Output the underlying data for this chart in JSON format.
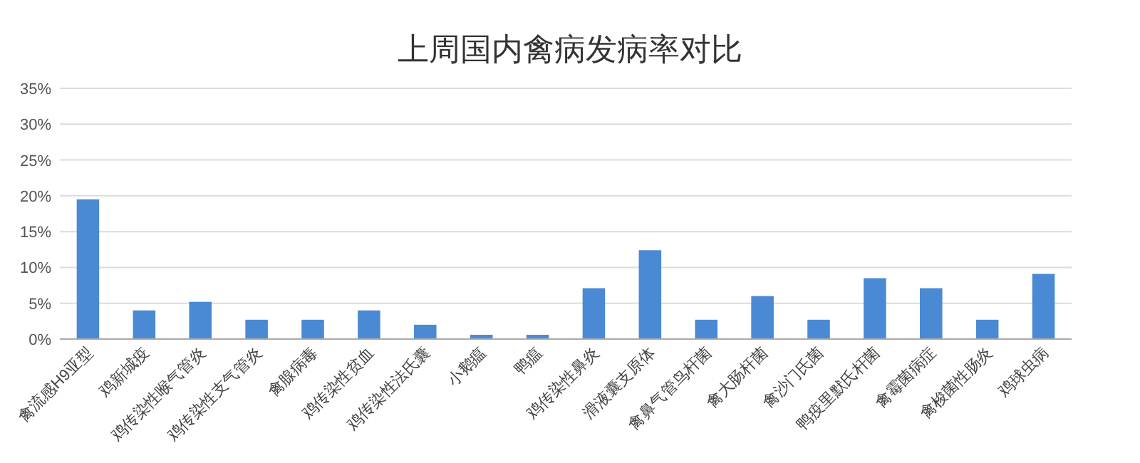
{
  "chart_data": {
    "type": "bar",
    "title": "上周国内禽病发病率对比",
    "categories": [
      "禽流感H9亚型",
      "鸡新城疫",
      "鸡传染性喉气管炎",
      "鸡传染性支气管炎",
      "禽腺病毒",
      "鸡传染性贫血",
      "鸡传染性法氏囊",
      "小鹅瘟",
      "鸭瘟",
      "鸡传染性鼻炎",
      "滑液囊支原体",
      "禽鼻气管鸟杆菌",
      "禽大肠杆菌",
      "禽沙门氏菌",
      "鸭疫里默氏杆菌",
      "禽霉菌病症",
      "禽梭菌性肠炎",
      "鸡球虫病"
    ],
    "values": [
      19.5,
      4,
      5.2,
      2.7,
      2.7,
      4,
      2,
      0.6,
      0.6,
      7.1,
      12.4,
      2.7,
      6,
      2.7,
      8.5,
      7.1,
      2.7,
      9.1
    ],
    "color": "#4a8ad4",
    "ylim": [
      0,
      35
    ],
    "yticks": [
      {
        "value": 0,
        "label": "0%"
      },
      {
        "value": 5,
        "label": "5%"
      },
      {
        "value": 10,
        "label": "10%"
      },
      {
        "value": 15,
        "label": "15%"
      },
      {
        "value": 20,
        "label": "20%"
      },
      {
        "value": 25,
        "label": "25%"
      },
      {
        "value": 30,
        "label": "30%"
      },
      {
        "value": 35,
        "label": "35%"
      }
    ],
    "grid": "y"
  }
}
